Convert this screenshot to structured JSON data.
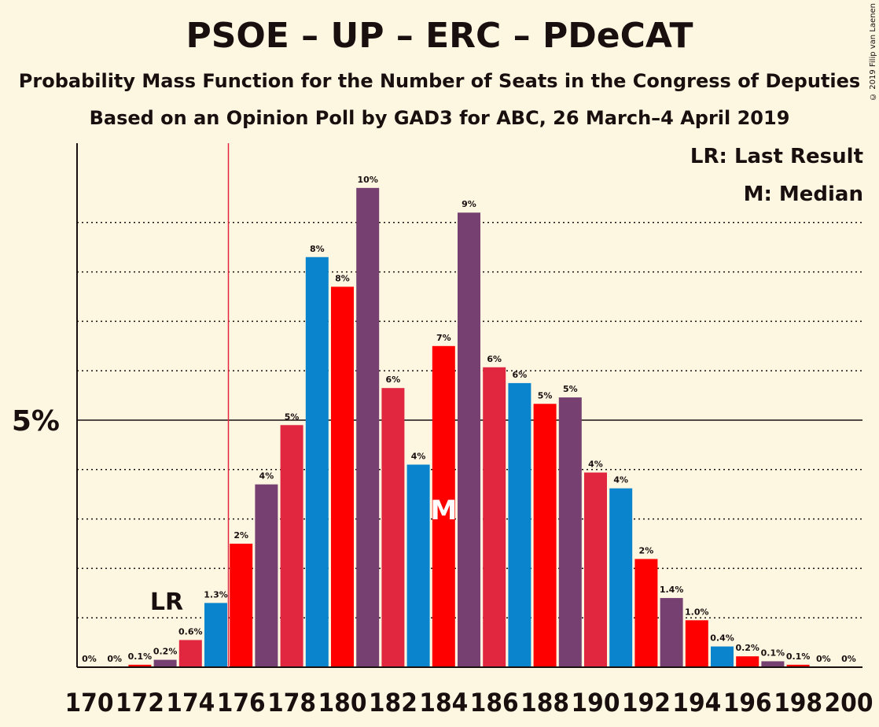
{
  "header": {
    "title": "PSOE – UP – ERC – PDeCAT",
    "subtitle1": "Probability Mass Function for the Number of Seats in the Congress of Deputies",
    "subtitle2": "Based on an Opinion Poll by GAD3 for ABC, 26 March–4 April 2019",
    "copyright": "© 2019 Filip van Laenen"
  },
  "legend": {
    "lr": "LR: Last Result",
    "m": "M: Median"
  },
  "markers": {
    "lr_label": "LR",
    "median_label": "M",
    "last_result_seat": 175,
    "median_seat": 184
  },
  "colors": {
    "background": "#fdf7e2",
    "blue": "#0a84cc",
    "red": "#ff0000",
    "purple": "#764170",
    "crimson": "#e1273f",
    "text": "#1a0f0f"
  },
  "chart_data": {
    "type": "bar",
    "title": "PSOE – UP – ERC – PDeCAT",
    "xlabel": "",
    "ylabel": "",
    "ylim": [
      0,
      10.5
    ],
    "ytick_label": "5%",
    "ytick_value": 5,
    "grid": "dotted",
    "x": [
      170,
      171,
      172,
      173,
      174,
      175,
      176,
      177,
      178,
      179,
      180,
      181,
      182,
      183,
      184,
      185,
      186,
      187,
      188,
      189,
      190,
      191,
      192,
      193,
      194,
      195,
      196,
      197,
      198,
      199,
      200
    ],
    "xtick_labels": [
      "170",
      "172",
      "174",
      "176",
      "178",
      "180",
      "182",
      "184",
      "186",
      "188",
      "190",
      "192",
      "194",
      "196",
      "198",
      "200"
    ],
    "values": [
      0,
      0,
      0.05,
      0.15,
      0.55,
      1.3,
      2.5,
      3.7,
      4.9,
      8.3,
      7.7,
      9.7,
      5.65,
      4.1,
      6.5,
      9.2,
      6.07,
      5.75,
      5.33,
      5.46,
      3.94,
      3.62,
      2.19,
      1.4,
      0.95,
      0.42,
      0.22,
      0.12,
      0.05,
      0,
      0
    ],
    "labels": [
      "0%",
      "0%",
      "0.1%",
      "0.2%",
      "0.6%",
      "1.3%",
      "2%",
      "4%",
      "5%",
      "8%",
      "8%",
      "10%",
      "6%",
      "4%",
      "7%",
      "9%",
      "6%",
      "6%",
      "5%",
      "5%",
      "4%",
      "4%",
      "2%",
      "1.4%",
      "1.0%",
      "0.4%",
      "0.2%",
      "0.1%",
      "0.1%",
      "0%",
      "0%"
    ],
    "bar_colors": [
      "blue",
      "red",
      "red",
      "purple",
      "crimson",
      "blue",
      "red",
      "purple",
      "crimson",
      "blue",
      "red",
      "purple",
      "crimson",
      "blue",
      "red",
      "purple",
      "crimson",
      "blue",
      "red",
      "purple",
      "crimson",
      "blue",
      "red",
      "purple",
      "red",
      "blue",
      "red",
      "purple",
      "red",
      "purple",
      "red"
    ]
  }
}
